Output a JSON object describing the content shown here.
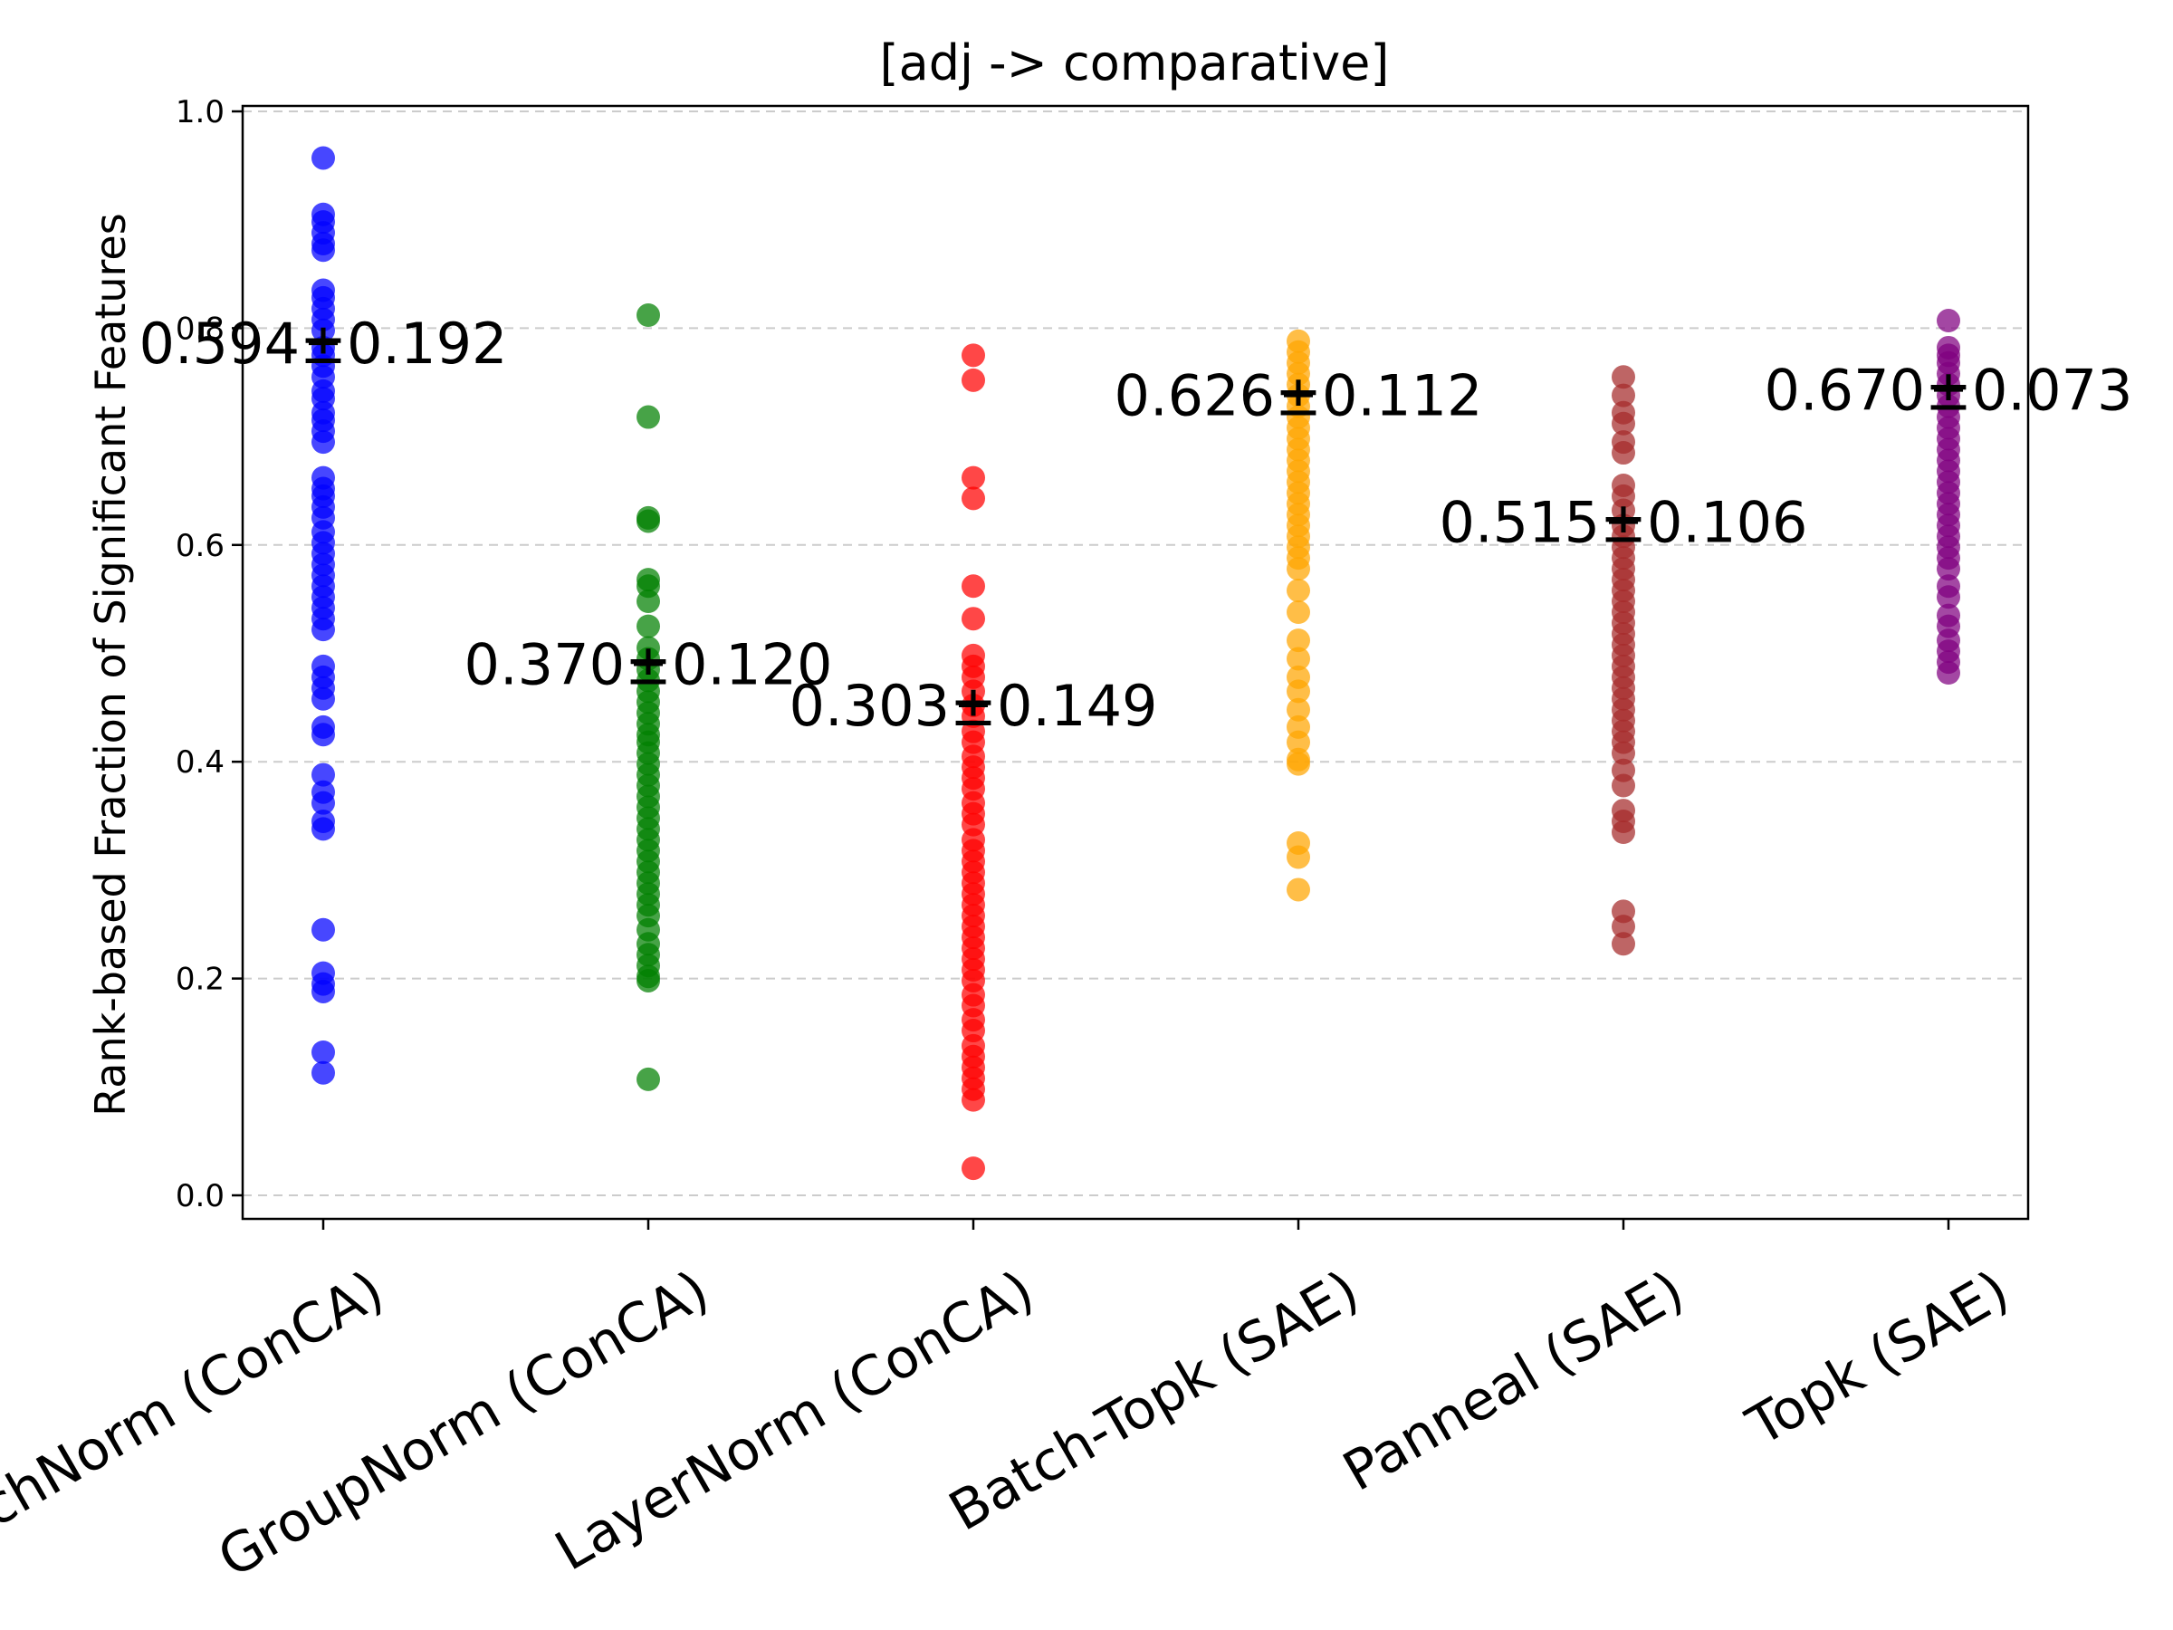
{
  "chart_data": {
    "type": "scatter",
    "title": "[adj -> comparative]",
    "xlabel": "",
    "ylabel": "Rank-based Fraction of Significant Features",
    "ylim": [
      -0.02,
      1.005
    ],
    "yticks": [
      "0.0",
      "0.2",
      "0.4",
      "0.6",
      "0.8",
      "1.0"
    ],
    "grid": "horizontal dashed",
    "categories": [
      "BatchNorm (ConCA)",
      "GroupNorm (ConCA)",
      "LayerNorm (ConCA)",
      "Batch-Topk (SAE)",
      "Panneal (SAE)",
      "Topk (SAE)"
    ],
    "series": [
      {
        "name": "BatchNorm (ConCA)",
        "color": "#0000ff",
        "annotation": "0.594±0.192",
        "mean": 0.594,
        "std": 0.192,
        "values": [
          0.957,
          0.905,
          0.898,
          0.888,
          0.878,
          0.872,
          0.835,
          0.828,
          0.818,
          0.808,
          0.798,
          0.782,
          0.775,
          0.765,
          0.755,
          0.742,
          0.735,
          0.722,
          0.715,
          0.705,
          0.695,
          0.662,
          0.652,
          0.645,
          0.635,
          0.625,
          0.612,
          0.602,
          0.592,
          0.582,
          0.572,
          0.562,
          0.552,
          0.542,
          0.532,
          0.522,
          0.488,
          0.478,
          0.468,
          0.458,
          0.432,
          0.425,
          0.388,
          0.372,
          0.362,
          0.345,
          0.338,
          0.245,
          0.205,
          0.195,
          0.188,
          0.132,
          0.113
        ]
      },
      {
        "name": "GroupNorm (ConCA)",
        "color": "#008000",
        "annotation": "0.370±0.120",
        "mean": 0.37,
        "std": 0.12,
        "values": [
          0.812,
          0.718,
          0.625,
          0.622,
          0.568,
          0.562,
          0.548,
          0.525,
          0.505,
          0.495,
          0.485,
          0.475,
          0.465,
          0.455,
          0.445,
          0.435,
          0.425,
          0.418,
          0.408,
          0.398,
          0.388,
          0.378,
          0.368,
          0.358,
          0.348,
          0.338,
          0.328,
          0.318,
          0.308,
          0.298,
          0.288,
          0.278,
          0.268,
          0.258,
          0.245,
          0.232,
          0.222,
          0.212,
          0.202,
          0.198,
          0.107
        ]
      },
      {
        "name": "LayerNorm (ConCA)",
        "color": "#ff0000",
        "annotation": "0.303±0.149",
        "mean": 0.303,
        "std": 0.149,
        "values": [
          0.775,
          0.752,
          0.662,
          0.643,
          0.562,
          0.532,
          0.498,
          0.488,
          0.478,
          0.465,
          0.452,
          0.442,
          0.428,
          0.418,
          0.405,
          0.395,
          0.385,
          0.375,
          0.362,
          0.352,
          0.342,
          0.328,
          0.318,
          0.308,
          0.298,
          0.288,
          0.278,
          0.268,
          0.258,
          0.248,
          0.238,
          0.228,
          0.218,
          0.208,
          0.198,
          0.185,
          0.175,
          0.162,
          0.152,
          0.138,
          0.128,
          0.118,
          0.108,
          0.098,
          0.088,
          0.025
        ]
      },
      {
        "name": "Batch-Topk (SAE)",
        "color": "#ffa500",
        "annotation": "0.626±0.112",
        "mean": 0.626,
        "std": 0.112,
        "values": [
          0.788,
          0.778,
          0.768,
          0.758,
          0.748,
          0.738,
          0.728,
          0.718,
          0.708,
          0.698,
          0.688,
          0.678,
          0.668,
          0.658,
          0.648,
          0.638,
          0.628,
          0.618,
          0.608,
          0.598,
          0.588,
          0.578,
          0.558,
          0.538,
          0.512,
          0.495,
          0.478,
          0.465,
          0.448,
          0.432,
          0.418,
          0.402,
          0.398,
          0.325,
          0.312,
          0.282
        ]
      },
      {
        "name": "Panneal (SAE)",
        "color": "#a52a2a",
        "annotation": "0.515±0.106",
        "mean": 0.515,
        "std": 0.106,
        "values": [
          0.755,
          0.738,
          0.722,
          0.712,
          0.695,
          0.685,
          0.655,
          0.645,
          0.632,
          0.618,
          0.608,
          0.598,
          0.588,
          0.578,
          0.568,
          0.558,
          0.548,
          0.538,
          0.528,
          0.518,
          0.508,
          0.498,
          0.488,
          0.478,
          0.468,
          0.458,
          0.448,
          0.438,
          0.428,
          0.418,
          0.408,
          0.392,
          0.378,
          0.355,
          0.345,
          0.335,
          0.262,
          0.248,
          0.232
        ]
      },
      {
        "name": "Topk (SAE)",
        "color": "#800080",
        "annotation": "0.670±0.073",
        "mean": 0.67,
        "std": 0.073,
        "values": [
          0.807,
          0.782,
          0.775,
          0.768,
          0.758,
          0.748,
          0.738,
          0.728,
          0.718,
          0.708,
          0.698,
          0.688,
          0.678,
          0.668,
          0.658,
          0.648,
          0.638,
          0.628,
          0.618,
          0.608,
          0.598,
          0.588,
          0.578,
          0.562,
          0.552,
          0.535,
          0.525,
          0.512,
          0.502,
          0.492,
          0.482
        ]
      }
    ]
  }
}
